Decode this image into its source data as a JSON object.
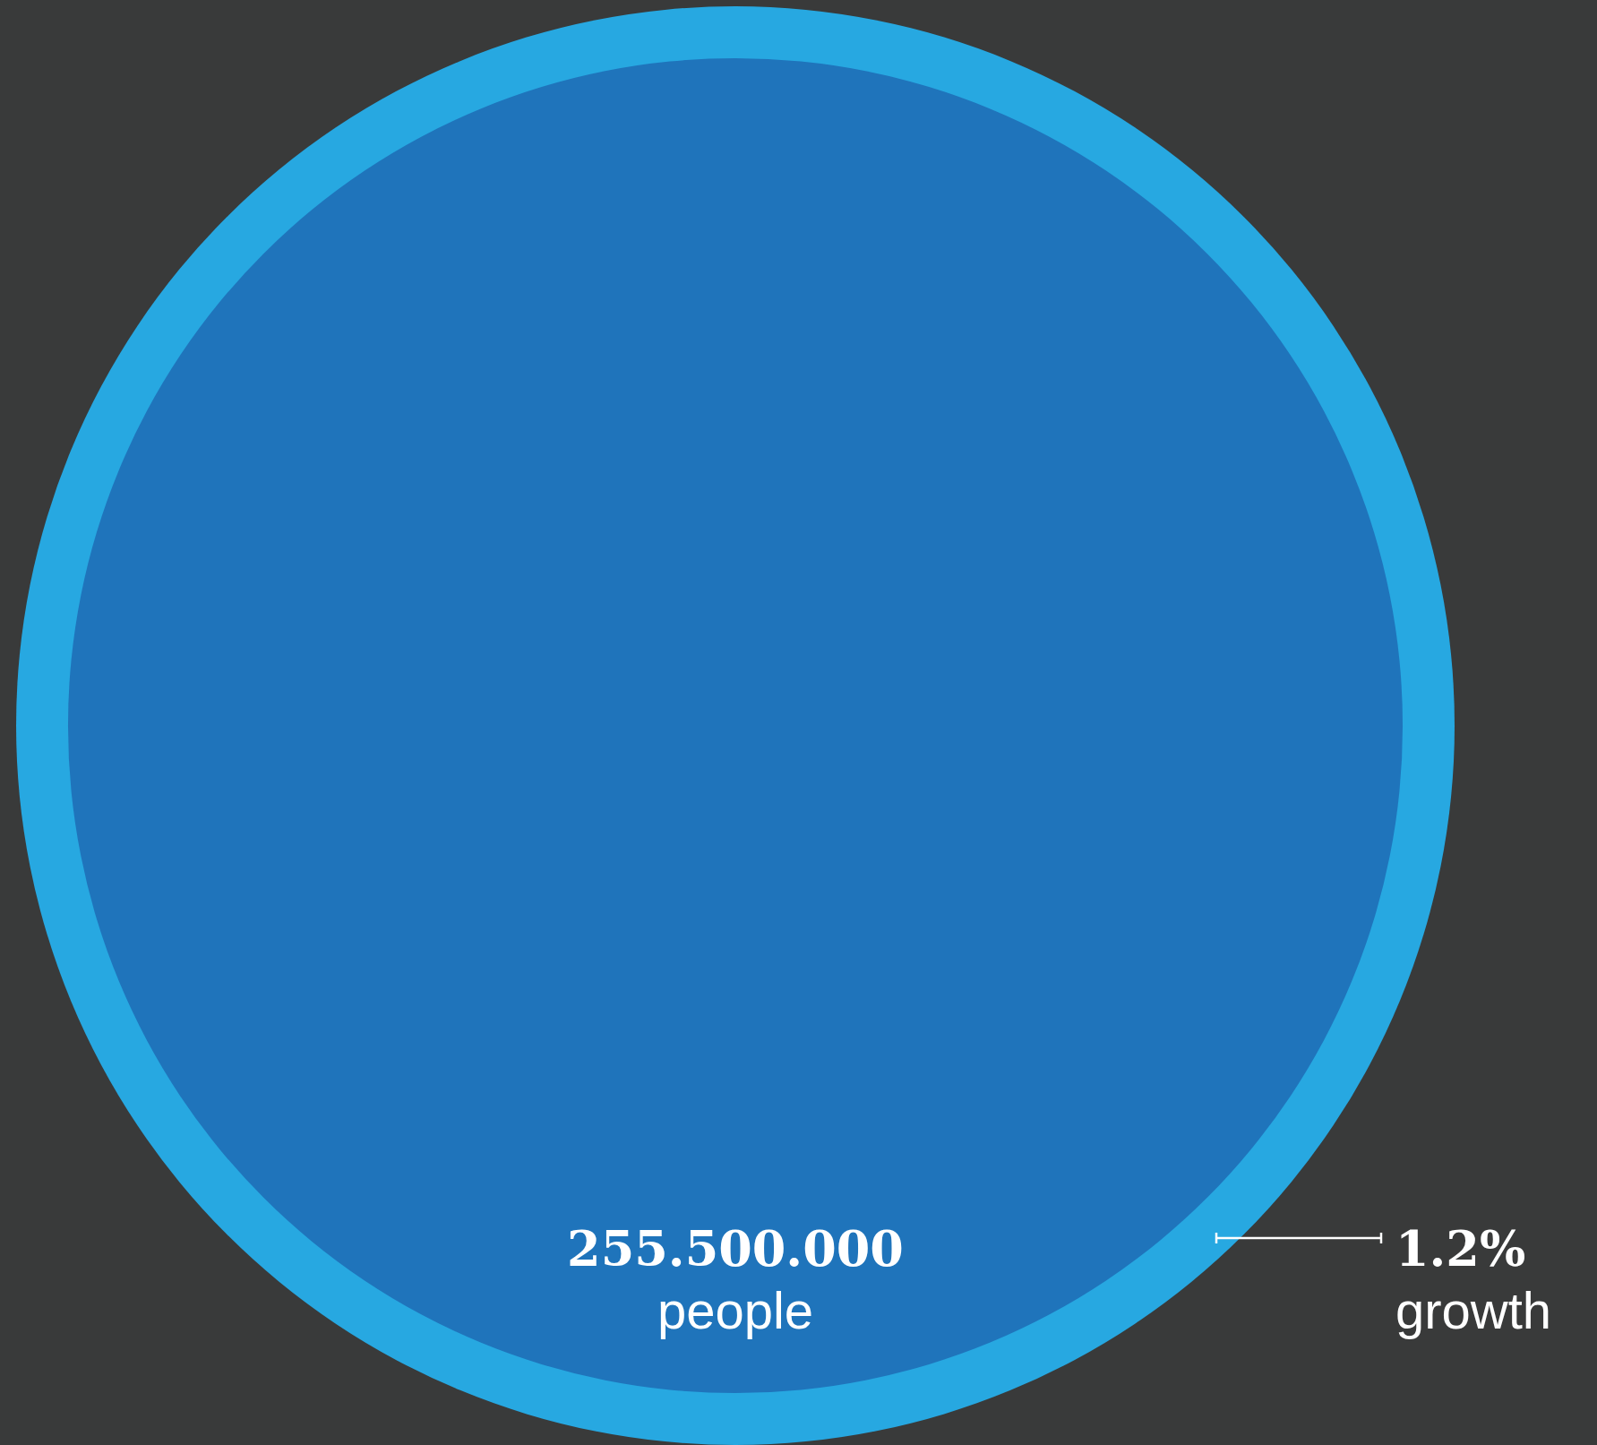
{
  "chart_data": {
    "type": "other",
    "values": [
      255500000,
      1.2
    ],
    "value_labels": [
      "255.500.000",
      "1.2%"
    ],
    "annotations": [
      "people",
      "growth"
    ],
    "colors": [
      "#1f74bb",
      "#27a8e1"
    ]
  }
}
